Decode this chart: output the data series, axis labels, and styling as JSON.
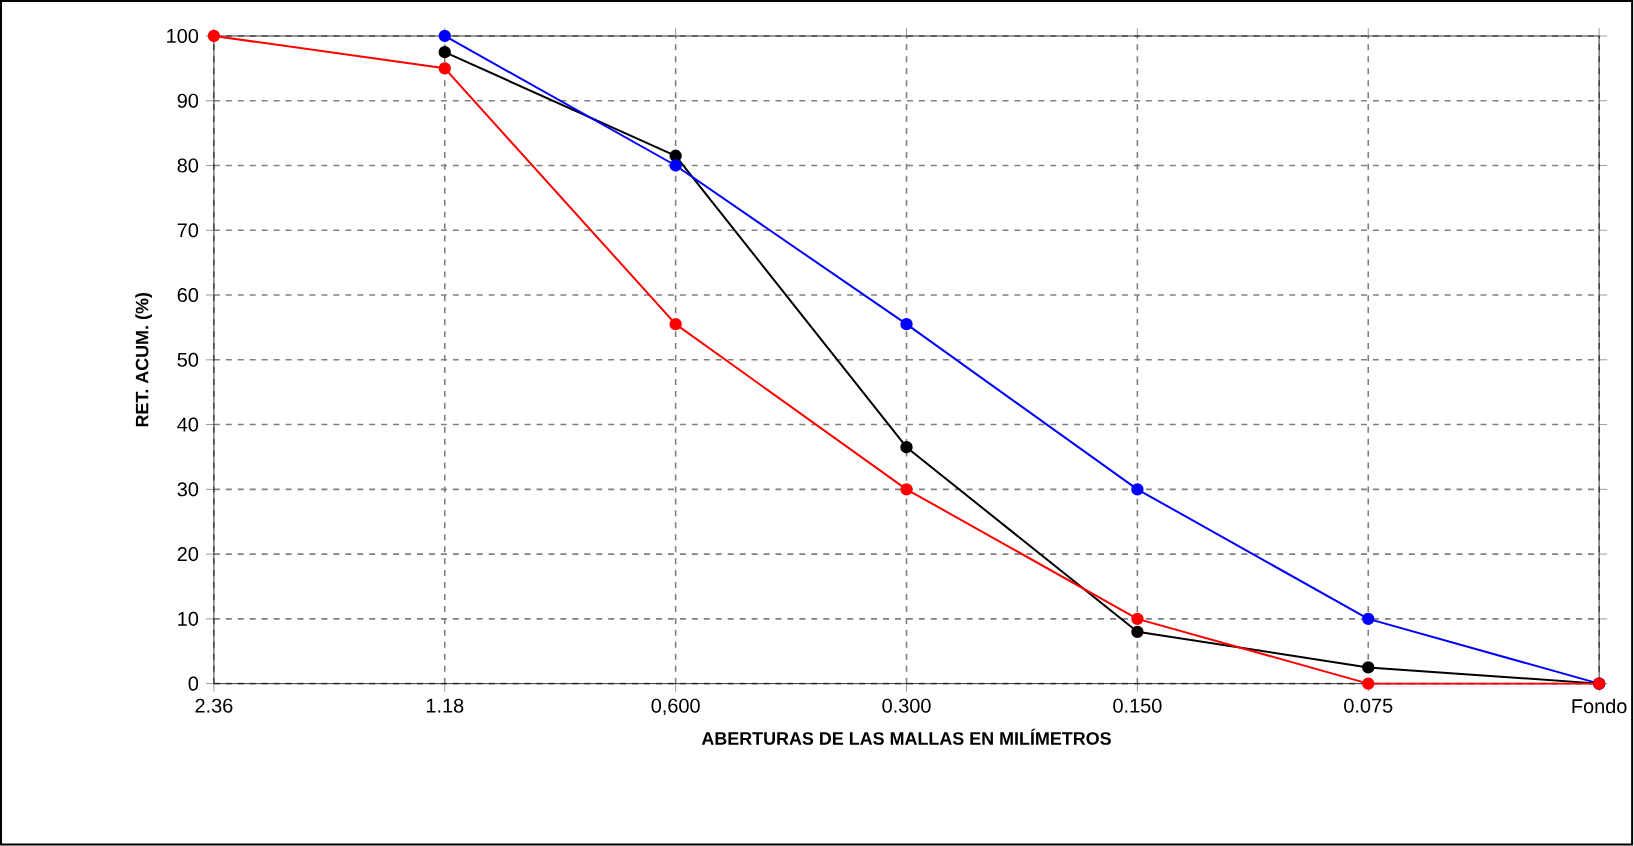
{
  "chart_data": {
    "type": "line",
    "xlabel": "ABERTURAS DE LAS MALLAS EN MILÍMETROS",
    "ylabel": "RET. ACUM. (%)",
    "categories": [
      "2.36",
      "1.18",
      "0,600",
      "0.300",
      "0.150",
      "0.075",
      "Fondo"
    ],
    "series": [
      {
        "color": "#000000",
        "values": [
          null,
          97.5,
          81.5,
          36.5,
          8,
          2.5,
          0
        ]
      },
      {
        "color": "#0000ff",
        "values": [
          null,
          100,
          80,
          55.5,
          30,
          10,
          0
        ]
      },
      {
        "color": "#ff0000",
        "values": [
          100,
          95,
          55.5,
          30,
          10,
          0,
          0
        ]
      }
    ],
    "ylim": [
      0,
      100
    ],
    "yticks": [
      0,
      10,
      20,
      30,
      40,
      50,
      60,
      70,
      80,
      90,
      100
    ],
    "grid": true,
    "marker": "circle",
    "line_style": "solid"
  }
}
